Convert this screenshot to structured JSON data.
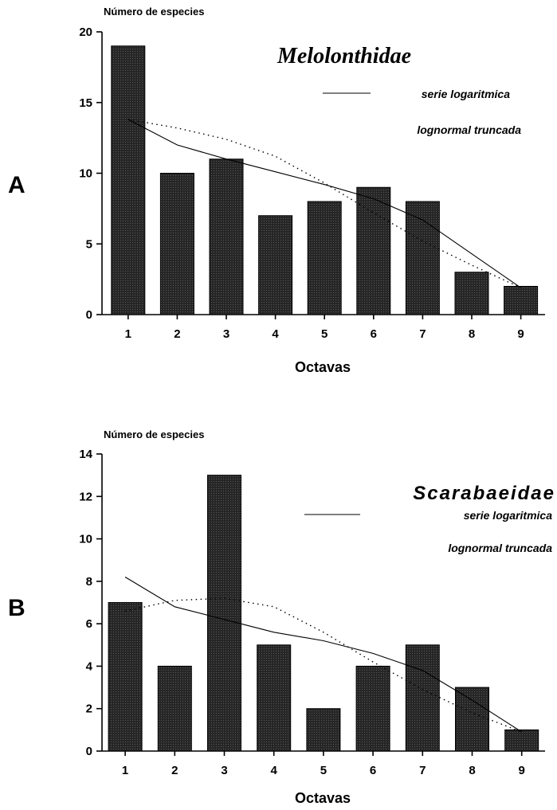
{
  "chart_data": [
    {
      "panel": "A",
      "type": "bar",
      "title": "Melolonthidae",
      "ylabel": "Número de especies",
      "xlabel": "Octavas",
      "categories": [
        "1",
        "2",
        "3",
        "4",
        "5",
        "6",
        "7",
        "8",
        "9"
      ],
      "ylim": [
        0,
        20
      ],
      "yticks": [
        "0",
        "5",
        "10",
        "15",
        "20"
      ],
      "series": [
        {
          "name": "",
          "kind": "bar",
          "values": [
            19,
            10,
            11,
            7,
            8,
            9,
            8,
            3,
            2
          ]
        },
        {
          "name": "serie logaritmica",
          "kind": "solid-line",
          "values": [
            13.8,
            12,
            11,
            10.1,
            9.2,
            8.2,
            6.7,
            4.3,
            1.9
          ]
        },
        {
          "name": "lognormal truncada",
          "kind": "dotted-line",
          "values": [
            13.8,
            13.2,
            12.4,
            11.2,
            9.3,
            7.2,
            5.2,
            3.5,
            1.9
          ]
        }
      ],
      "legend": [
        "serie logaritmica",
        "lognormal truncada"
      ],
      "legend_position": "top-right",
      "grid": false,
      "bar_color": "#2a2a2a"
    },
    {
      "panel": "B",
      "type": "bar",
      "title": "Scarabaeidae",
      "ylabel": "Número de especies",
      "xlabel": "Octavas",
      "categories": [
        "1",
        "2",
        "3",
        "4",
        "5",
        "6",
        "7",
        "8",
        "9"
      ],
      "ylim": [
        0,
        14
      ],
      "yticks": [
        "0",
        "2",
        "4",
        "6",
        "8",
        "10",
        "12",
        "14"
      ],
      "series": [
        {
          "name": "",
          "kind": "bar",
          "values": [
            7,
            4,
            13,
            5,
            2,
            4,
            5,
            3,
            1
          ]
        },
        {
          "name": "serie logaritmica",
          "kind": "solid-line",
          "values": [
            8.2,
            6.8,
            6.2,
            5.6,
            5.2,
            4.6,
            3.8,
            2.4,
            0.9
          ]
        },
        {
          "name": "lognormal truncada",
          "kind": "dotted-line",
          "values": [
            6.6,
            7.1,
            7.2,
            6.8,
            5.6,
            4.2,
            2.9,
            1.8,
            0.9
          ]
        }
      ],
      "legend": [
        "serie logaritmica",
        "lognormal truncada"
      ],
      "legend_position": "top-right",
      "grid": false,
      "bar_color": "#2a2a2a"
    }
  ]
}
